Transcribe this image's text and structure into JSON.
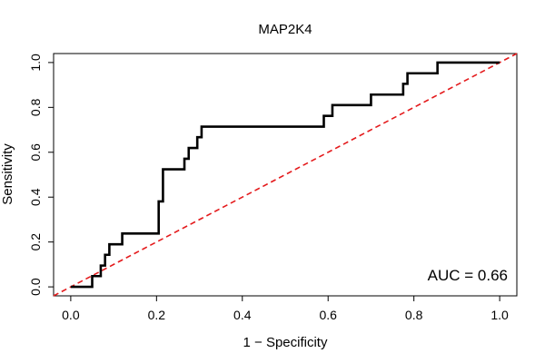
{
  "chart_data": {
    "type": "line",
    "title": "MAP2K4",
    "xlabel": "1 − Specificity",
    "ylabel": "Sensitivity",
    "xlim": [
      -0.04,
      1.04
    ],
    "ylim": [
      -0.04,
      1.04
    ],
    "x_ticks": [
      0.0,
      0.2,
      0.4,
      0.6,
      0.8,
      1.0
    ],
    "x_tick_labels": [
      "0.0",
      "0.2",
      "0.4",
      "0.6",
      "0.8",
      "1.0"
    ],
    "y_ticks": [
      0.0,
      0.2,
      0.4,
      0.6,
      0.8,
      1.0
    ],
    "y_tick_labels": [
      "0.0",
      "0.2",
      "0.4",
      "0.6",
      "0.8",
      "1.0"
    ],
    "grid": false,
    "annotation": "AUC = 0.66",
    "auc": 0.66,
    "series": [
      {
        "name": "ROC curve",
        "color": "#000000",
        "style": "step",
        "x": [
          0.0,
          0.05,
          0.05,
          0.07,
          0.07,
          0.08,
          0.08,
          0.09,
          0.09,
          0.1,
          0.1,
          0.12,
          0.12,
          0.205,
          0.205,
          0.215,
          0.215,
          0.265,
          0.265,
          0.275,
          0.275,
          0.295,
          0.295,
          0.305,
          0.305,
          0.59,
          0.59,
          0.61,
          0.61,
          0.7,
          0.7,
          0.775,
          0.775,
          0.785,
          0.785,
          0.855,
          0.855,
          1.0
        ],
        "y": [
          0.0,
          0.0,
          0.048,
          0.048,
          0.095,
          0.095,
          0.143,
          0.143,
          0.19,
          0.19,
          0.19,
          0.19,
          0.238,
          0.238,
          0.381,
          0.381,
          0.524,
          0.524,
          0.571,
          0.571,
          0.619,
          0.619,
          0.667,
          0.667,
          0.714,
          0.714,
          0.762,
          0.762,
          0.81,
          0.81,
          0.857,
          0.857,
          0.905,
          0.905,
          0.952,
          0.952,
          1.0,
          1.0
        ]
      },
      {
        "name": "Reference diagonal",
        "color": "#e41a1c",
        "style": "dashed",
        "x": [
          -0.04,
          1.04
        ],
        "y": [
          -0.04,
          1.04
        ]
      }
    ]
  }
}
